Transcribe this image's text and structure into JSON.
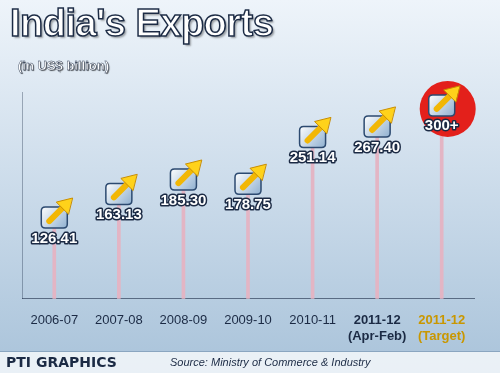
{
  "chart_data": {
    "type": "bar",
    "title": "India's Exports",
    "subtitle": "(in US$ billion)",
    "categories": [
      "2006-07",
      "2007-08",
      "2008-09",
      "2009-10",
      "2010-11",
      "2011-12 (Apr-Feb)",
      "2011-12 (Target)"
    ],
    "values": [
      126.41,
      163.13,
      185.3,
      178.75,
      251.14,
      267.4,
      300
    ],
    "value_labels": [
      "126.41",
      "163.13",
      "185.30",
      "178.75",
      "251.14",
      "267.40",
      "300+"
    ],
    "color": "#e3b5c4",
    "ylim": [
      0,
      320
    ],
    "grid": false,
    "data_labels": true,
    "tick_labels": "x",
    "source": "Source: Ministry of Commerce & Industry",
    "credit": "PTI GRAPHICS"
  }
}
